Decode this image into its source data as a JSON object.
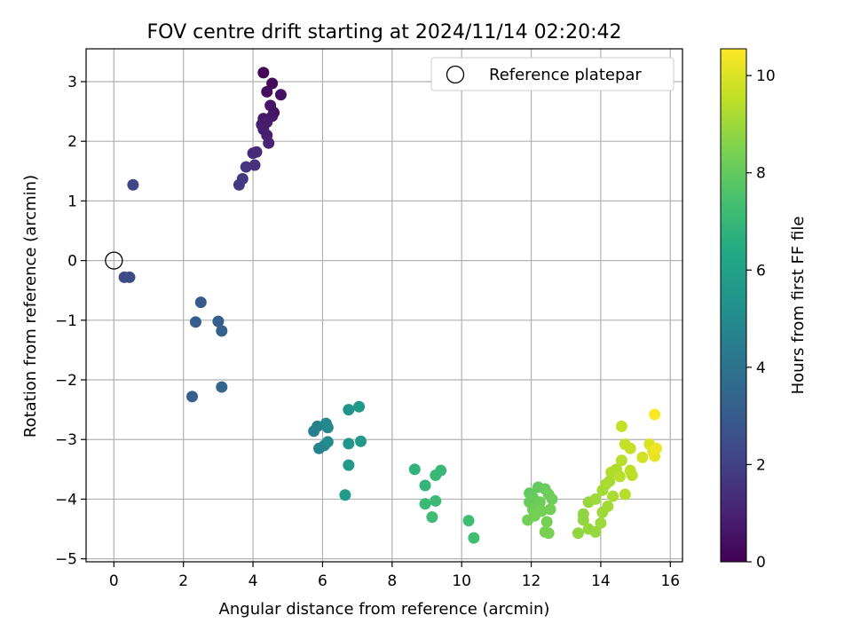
{
  "chart_data": {
    "type": "scatter",
    "title": "FOV centre drift starting at 2024/11/14 02:20:42",
    "xlabel": "Angular distance from reference (arcmin)",
    "ylabel": "Rotation from reference (arcmin)",
    "xlim": [
      -0.8,
      16.35
    ],
    "ylim": [
      -5.05,
      3.55
    ],
    "xticks": [
      0,
      2,
      4,
      6,
      8,
      10,
      12,
      14,
      16
    ],
    "yticks": [
      3,
      2,
      1,
      0,
      -1,
      -2,
      -3,
      -4,
      -5
    ],
    "grid": true,
    "legend": {
      "placement": "top-right",
      "entries": [
        "Reference platepar"
      ]
    },
    "reference_point": {
      "x": 0,
      "y": 0,
      "label": "Reference platepar"
    },
    "colorbar": {
      "label": "Hours from first FF file",
      "colormap": "viridis",
      "min": 0,
      "max": 10.55,
      "ticks": [
        0,
        2,
        4,
        6,
        8,
        10
      ]
    },
    "points": [
      {
        "x": 4.3,
        "y": 3.15,
        "c": 0.1
      },
      {
        "x": 4.55,
        "y": 2.97,
        "c": 0.3
      },
      {
        "x": 4.8,
        "y": 2.78,
        "c": 0.5
      },
      {
        "x": 4.4,
        "y": 2.83,
        "c": 0.4
      },
      {
        "x": 4.5,
        "y": 2.6,
        "c": 0.6
      },
      {
        "x": 4.6,
        "y": 2.48,
        "c": 0.5
      },
      {
        "x": 4.55,
        "y": 2.42,
        "c": 0.7
      },
      {
        "x": 4.3,
        "y": 2.38,
        "c": 0.7
      },
      {
        "x": 4.4,
        "y": 2.32,
        "c": 0.8
      },
      {
        "x": 4.25,
        "y": 2.28,
        "c": 0.8
      },
      {
        "x": 4.3,
        "y": 2.2,
        "c": 0.9
      },
      {
        "x": 4.4,
        "y": 2.1,
        "c": 0.9
      },
      {
        "x": 4.45,
        "y": 1.97,
        "c": 1.0
      },
      {
        "x": 4.1,
        "y": 1.82,
        "c": 1.3
      },
      {
        "x": 4.0,
        "y": 1.8,
        "c": 1.3
      },
      {
        "x": 4.05,
        "y": 1.6,
        "c": 1.5
      },
      {
        "x": 3.8,
        "y": 1.57,
        "c": 1.6
      },
      {
        "x": 3.7,
        "y": 1.37,
        "c": 1.7
      },
      {
        "x": 3.6,
        "y": 1.27,
        "c": 1.8
      },
      {
        "x": 0.55,
        "y": 1.27,
        "c": 2.2
      },
      {
        "x": 0.3,
        "y": -0.28,
        "c": 2.3
      },
      {
        "x": 0.45,
        "y": -0.28,
        "c": 2.4
      },
      {
        "x": 2.5,
        "y": -0.7,
        "c": 3.0
      },
      {
        "x": 2.35,
        "y": -1.03,
        "c": 3.1
      },
      {
        "x": 3.0,
        "y": -1.02,
        "c": 3.2
      },
      {
        "x": 3.1,
        "y": -1.18,
        "c": 3.3
      },
      {
        "x": 2.25,
        "y": -2.28,
        "c": 3.2
      },
      {
        "x": 3.1,
        "y": -2.12,
        "c": 3.4
      },
      {
        "x": 5.75,
        "y": -2.86,
        "c": 4.5
      },
      {
        "x": 5.85,
        "y": -2.78,
        "c": 4.6
      },
      {
        "x": 5.9,
        "y": -3.15,
        "c": 4.7
      },
      {
        "x": 6.05,
        "y": -3.1,
        "c": 4.8
      },
      {
        "x": 6.1,
        "y": -2.73,
        "c": 4.9
      },
      {
        "x": 6.15,
        "y": -2.8,
        "c": 4.9
      },
      {
        "x": 6.15,
        "y": -3.04,
        "c": 5.0
      },
      {
        "x": 6.75,
        "y": -2.5,
        "c": 5.4
      },
      {
        "x": 6.75,
        "y": -3.07,
        "c": 5.5
      },
      {
        "x": 7.05,
        "y": -2.45,
        "c": 5.6
      },
      {
        "x": 7.1,
        "y": -3.03,
        "c": 5.7
      },
      {
        "x": 6.75,
        "y": -3.43,
        "c": 5.7
      },
      {
        "x": 6.65,
        "y": -3.93,
        "c": 5.8
      },
      {
        "x": 8.65,
        "y": -3.5,
        "c": 6.8
      },
      {
        "x": 8.95,
        "y": -3.77,
        "c": 6.9
      },
      {
        "x": 9.25,
        "y": -3.6,
        "c": 7.0
      },
      {
        "x": 9.4,
        "y": -3.52,
        "c": 7.0
      },
      {
        "x": 8.95,
        "y": -4.08,
        "c": 7.1
      },
      {
        "x": 9.25,
        "y": -4.03,
        "c": 7.1
      },
      {
        "x": 9.15,
        "y": -4.3,
        "c": 7.2
      },
      {
        "x": 10.2,
        "y": -4.36,
        "c": 7.3
      },
      {
        "x": 10.35,
        "y": -4.65,
        "c": 7.3
      },
      {
        "x": 11.95,
        "y": -3.9,
        "c": 8.0
      },
      {
        "x": 12.2,
        "y": -3.8,
        "c": 8.0
      },
      {
        "x": 12.4,
        "y": -3.83,
        "c": 8.1
      },
      {
        "x": 12.05,
        "y": -3.97,
        "c": 8.1
      },
      {
        "x": 11.95,
        "y": -4.05,
        "c": 8.1
      },
      {
        "x": 12.5,
        "y": -3.92,
        "c": 8.2
      },
      {
        "x": 12.6,
        "y": -4.0,
        "c": 8.2
      },
      {
        "x": 12.25,
        "y": -4.05,
        "c": 8.2
      },
      {
        "x": 12.05,
        "y": -4.18,
        "c": 8.2
      },
      {
        "x": 12.3,
        "y": -4.2,
        "c": 8.3
      },
      {
        "x": 12.55,
        "y": -4.17,
        "c": 8.3
      },
      {
        "x": 12.1,
        "y": -4.28,
        "c": 8.3
      },
      {
        "x": 11.9,
        "y": -4.35,
        "c": 8.3
      },
      {
        "x": 12.45,
        "y": -4.38,
        "c": 8.4
      },
      {
        "x": 12.4,
        "y": -4.55,
        "c": 8.4
      },
      {
        "x": 12.5,
        "y": -4.57,
        "c": 8.4
      },
      {
        "x": 13.5,
        "y": -4.25,
        "c": 8.8
      },
      {
        "x": 13.5,
        "y": -4.35,
        "c": 8.8
      },
      {
        "x": 13.35,
        "y": -4.57,
        "c": 8.8
      },
      {
        "x": 13.65,
        "y": -4.5,
        "c": 8.9
      },
      {
        "x": 13.85,
        "y": -4.55,
        "c": 8.9
      },
      {
        "x": 13.65,
        "y": -4.05,
        "c": 8.9
      },
      {
        "x": 13.85,
        "y": -4.0,
        "c": 9.0
      },
      {
        "x": 14.0,
        "y": -4.4,
        "c": 9.0
      },
      {
        "x": 14.05,
        "y": -4.22,
        "c": 9.0
      },
      {
        "x": 14.2,
        "y": -4.12,
        "c": 9.1
      },
      {
        "x": 14.05,
        "y": -3.85,
        "c": 9.1
      },
      {
        "x": 14.15,
        "y": -3.75,
        "c": 9.2
      },
      {
        "x": 14.25,
        "y": -3.7,
        "c": 9.2
      },
      {
        "x": 14.3,
        "y": -3.55,
        "c": 9.3
      },
      {
        "x": 14.45,
        "y": -3.5,
        "c": 9.3
      },
      {
        "x": 14.35,
        "y": -3.95,
        "c": 9.2
      },
      {
        "x": 14.55,
        "y": -3.62,
        "c": 9.4
      },
      {
        "x": 14.6,
        "y": -3.35,
        "c": 9.4
      },
      {
        "x": 14.7,
        "y": -3.92,
        "c": 9.4
      },
      {
        "x": 14.85,
        "y": -3.52,
        "c": 9.5
      },
      {
        "x": 14.9,
        "y": -3.6,
        "c": 9.5
      },
      {
        "x": 14.7,
        "y": -3.08,
        "c": 9.6
      },
      {
        "x": 14.85,
        "y": -3.15,
        "c": 9.6
      },
      {
        "x": 14.6,
        "y": -2.78,
        "c": 9.6
      },
      {
        "x": 15.2,
        "y": -3.3,
        "c": 9.8
      },
      {
        "x": 15.4,
        "y": -3.08,
        "c": 10.0
      },
      {
        "x": 15.5,
        "y": -3.2,
        "c": 10.1
      },
      {
        "x": 15.55,
        "y": -3.28,
        "c": 10.2
      },
      {
        "x": 15.6,
        "y": -3.15,
        "c": 10.3
      },
      {
        "x": 15.55,
        "y": -2.58,
        "c": 10.5
      }
    ]
  }
}
